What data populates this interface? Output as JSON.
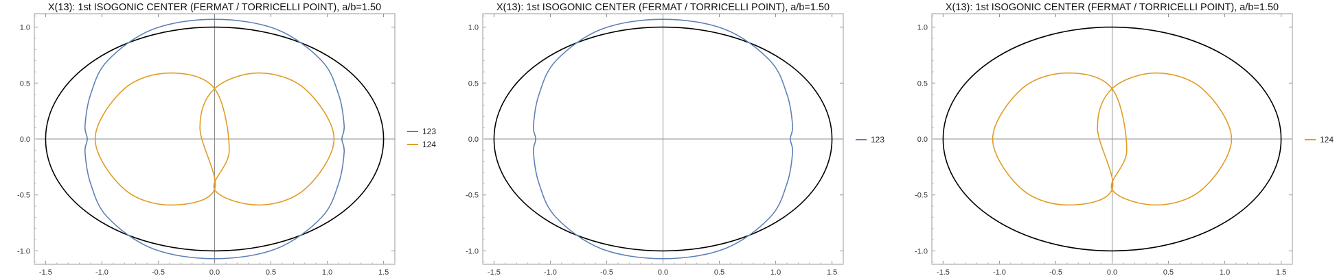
{
  "chart_data": [
    {
      "type": "line",
      "title": "X(13): 1st ISOGONIC CENTER (FERMAT / TORRICELLI POINT), a/b=1.50",
      "xlabel": "",
      "ylabel": "",
      "xlim": [
        -1.6,
        1.6
      ],
      "ylim": [
        -1.12,
        1.12
      ],
      "xticks": [
        -1.5,
        -1.0,
        -0.5,
        0.0,
        0.5,
        1.0,
        1.5
      ],
      "xtick_labels": [
        "-1.5",
        "-1.0",
        "-0.5",
        "0.0",
        "0.5",
        "1.0",
        "1.5"
      ],
      "yticks": [
        -1.0,
        -0.5,
        0.0,
        0.5,
        1.0
      ],
      "ytick_labels": [
        "-1.0",
        "-0.5",
        "0.0",
        "0.5",
        "1.0"
      ],
      "grid": false,
      "axes_origin": true,
      "legend": "right",
      "reference_ellipse": {
        "a": 1.5,
        "b": 1.0,
        "color": "#000000"
      },
      "series": [
        {
          "name": "123",
          "color": "#5e81b5",
          "shape": "rounded-blob",
          "x": [
            0.0,
            0.55,
            0.95,
            1.1,
            1.15,
            1.13,
            1.15,
            1.1,
            0.95,
            0.55,
            0.0,
            -0.55,
            -0.95,
            -1.1,
            -1.15,
            -1.13,
            -1.15,
            -1.1,
            -0.95,
            -0.55,
            0.0
          ],
          "y": [
            1.07,
            0.98,
            0.7,
            0.4,
            0.12,
            0.0,
            -0.12,
            -0.4,
            -0.7,
            -0.98,
            -1.07,
            -0.98,
            -0.7,
            -0.4,
            -0.12,
            0.0,
            0.12,
            0.4,
            0.7,
            0.98,
            1.07
          ]
        },
        {
          "name": "124",
          "color": "#e19c24",
          "shape": "double-loop",
          "x": [
            0.0,
            0.39,
            0.8,
            1.06,
            0.8,
            0.39,
            0.0,
            0.13,
            0.0,
            -0.39,
            -0.8,
            -1.06,
            -0.8,
            -0.39,
            0.0,
            -0.13,
            0.0
          ],
          "y": [
            0.45,
            0.59,
            0.45,
            0.0,
            -0.45,
            -0.59,
            -0.45,
            -0.1,
            0.45,
            0.59,
            0.45,
            0.0,
            -0.45,
            -0.59,
            -0.45,
            0.1,
            0.45
          ]
        }
      ]
    },
    {
      "type": "line",
      "title": "X(13): 1st ISOGONIC CENTER (FERMAT / TORRICELLI POINT), a/b=1.50",
      "xlabel": "",
      "ylabel": "",
      "xlim": [
        -1.6,
        1.6
      ],
      "ylim": [
        -1.12,
        1.12
      ],
      "xticks": [
        -1.5,
        -1.0,
        -0.5,
        0.0,
        0.5,
        1.0,
        1.5
      ],
      "xtick_labels": [
        "-1.5",
        "-1.0",
        "-0.5",
        "0.0",
        "0.5",
        "1.0",
        "1.5"
      ],
      "yticks": [
        -1.0,
        -0.5,
        0.0,
        0.5,
        1.0
      ],
      "ytick_labels": [
        "-1.0",
        "-0.5",
        "0.0",
        "0.5",
        "1.0"
      ],
      "grid": false,
      "axes_origin": true,
      "legend": "right",
      "reference_ellipse": {
        "a": 1.5,
        "b": 1.0,
        "color": "#000000"
      },
      "series": [
        {
          "name": "123",
          "color": "#5e81b5",
          "shape": "rounded-blob",
          "x": [
            0.0,
            0.55,
            0.95,
            1.1,
            1.15,
            1.13,
            1.15,
            1.1,
            0.95,
            0.55,
            0.0,
            -0.55,
            -0.95,
            -1.1,
            -1.15,
            -1.13,
            -1.15,
            -1.1,
            -0.95,
            -0.55,
            0.0
          ],
          "y": [
            1.07,
            0.98,
            0.7,
            0.4,
            0.12,
            0.0,
            -0.12,
            -0.4,
            -0.7,
            -0.98,
            -1.07,
            -0.98,
            -0.7,
            -0.4,
            -0.12,
            0.0,
            0.12,
            0.4,
            0.7,
            0.98,
            1.07
          ]
        }
      ]
    },
    {
      "type": "line",
      "title": "X(13): 1st ISOGONIC CENTER (FERMAT / TORRICELLI POINT), a/b=1.50",
      "xlabel": "",
      "ylabel": "",
      "xlim": [
        -1.6,
        1.6
      ],
      "ylim": [
        -1.12,
        1.12
      ],
      "xticks": [
        -1.5,
        -1.0,
        -0.5,
        0.0,
        0.5,
        1.0,
        1.5
      ],
      "xtick_labels": [
        "-1.5",
        "-1.0",
        "-0.5",
        "0.0",
        "0.5",
        "1.0",
        "1.5"
      ],
      "yticks": [
        -1.0,
        -0.5,
        0.0,
        0.5,
        1.0
      ],
      "ytick_labels": [
        "-1.0",
        "-0.5",
        "0.0",
        "0.5",
        "1.0"
      ],
      "grid": false,
      "axes_origin": true,
      "legend": "right",
      "reference_ellipse": {
        "a": 1.5,
        "b": 1.0,
        "color": "#000000"
      },
      "series": [
        {
          "name": "124",
          "color": "#e19c24",
          "shape": "double-loop",
          "x": [
            0.0,
            0.39,
            0.8,
            1.06,
            0.8,
            0.39,
            0.0,
            0.13,
            0.0,
            -0.39,
            -0.8,
            -1.06,
            -0.8,
            -0.39,
            0.0,
            -0.13,
            0.0
          ],
          "y": [
            0.45,
            0.59,
            0.45,
            0.0,
            -0.45,
            -0.59,
            -0.45,
            -0.1,
            0.45,
            0.59,
            0.45,
            0.0,
            -0.45,
            -0.59,
            -0.45,
            0.1,
            0.45
          ]
        }
      ]
    }
  ]
}
